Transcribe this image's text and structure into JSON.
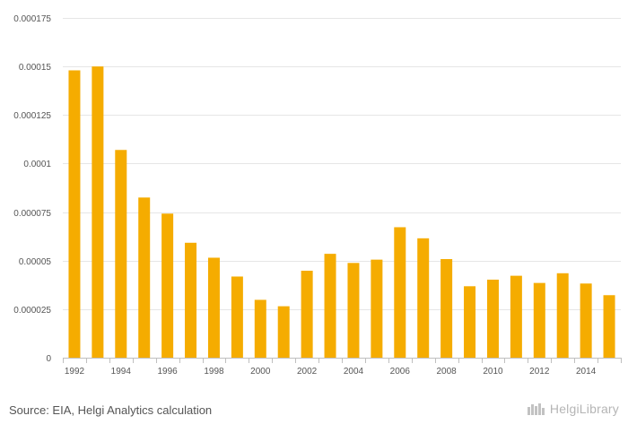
{
  "chart_data": {
    "type": "bar",
    "title": "",
    "xlabel": "",
    "ylabel": "",
    "categories": [
      "1992",
      "1993",
      "1994",
      "1995",
      "1996",
      "1997",
      "1998",
      "1999",
      "2000",
      "2001",
      "2002",
      "2003",
      "2004",
      "2005",
      "2006",
      "2007",
      "2008",
      "2009",
      "2010",
      "2011",
      "2012",
      "2013",
      "2014",
      "2015"
    ],
    "x_tick_labels": [
      "1992",
      "1994",
      "1996",
      "1998",
      "2000",
      "2002",
      "2004",
      "2006",
      "2008",
      "2010",
      "2012",
      "2014"
    ],
    "values": [
      0.000148,
      0.00015,
      0.000107,
      8.25e-05,
      7.42e-05,
      5.92e-05,
      5.15e-05,
      4.18e-05,
      2.98e-05,
      2.65e-05,
      4.48e-05,
      5.35e-05,
      4.88e-05,
      5.05e-05,
      6.72e-05,
      6.15e-05,
      5.08e-05,
      3.68e-05,
      4.02e-05,
      4.22e-05,
      3.85e-05,
      4.35e-05,
      3.82e-05,
      3.22e-05
    ],
    "y_ticks": [
      "0",
      "0.000025",
      "0.00005",
      "0.000075",
      "0.0001",
      "0.000125",
      "0.00015",
      "0.000175"
    ],
    "ylim": [
      0,
      0.000175
    ],
    "bar_color": "#f5ac00"
  },
  "footer": {
    "source": "Source: EIA, Helgi Analytics calculation",
    "logo_text": "HelgiLibrary"
  }
}
